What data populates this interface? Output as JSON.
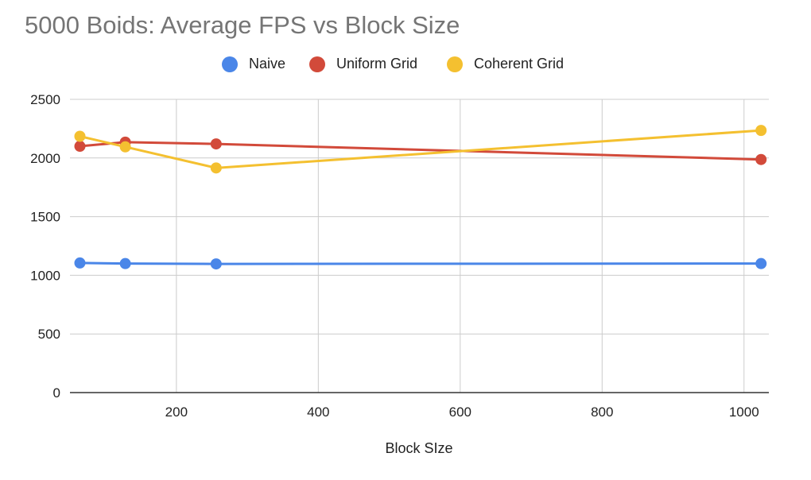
{
  "chart_data": {
    "type": "line",
    "title": "5000 Boids: Average FPS vs Block Size",
    "xlabel": "Block SIze",
    "ylabel": "",
    "xlim": [
      64,
      1024
    ],
    "ylim": [
      0,
      2500
    ],
    "x_ticks": [
      200,
      400,
      600,
      800,
      1000
    ],
    "y_ticks": [
      0,
      500,
      1000,
      1500,
      2000,
      2500
    ],
    "grid": true,
    "legend_position": "top",
    "x": [
      64,
      128,
      256,
      1024
    ],
    "series": [
      {
        "name": "Naive",
        "color": "#4a86e8",
        "values": [
          1105,
          1100,
          1097,
          1100
        ]
      },
      {
        "name": "Uniform Grid",
        "color": "#d24a3a",
        "values": [
          2100,
          2135,
          2120,
          1987
        ]
      },
      {
        "name": "Coherent Grid",
        "color": "#f4c030",
        "values": [
          2185,
          2095,
          1915,
          2235
        ]
      }
    ]
  }
}
